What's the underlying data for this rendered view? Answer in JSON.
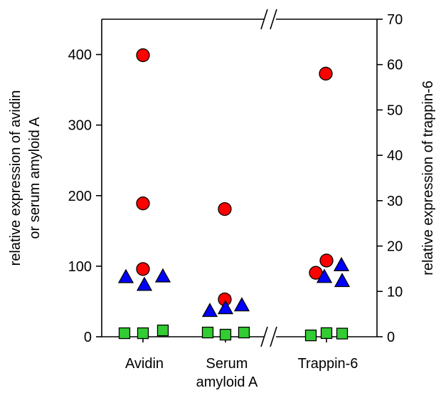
{
  "chart_data": {
    "type": "scatter",
    "categories": [
      [
        "Avidin"
      ],
      [
        "Serum",
        "amyloid A"
      ],
      [
        "Trappin-6"
      ]
    ],
    "left_axis": {
      "label_lines": [
        "relative expression of avidin",
        "or serum amyloid A"
      ],
      "ylim": [
        0,
        450
      ],
      "ticks": [
        0,
        100,
        200,
        300,
        400
      ]
    },
    "right_axis": {
      "label": "relative expression of trappin-6",
      "ylim": [
        0,
        70
      ],
      "ticks": [
        0,
        10,
        20,
        30,
        40,
        50,
        60,
        70
      ]
    },
    "axis_break": "//",
    "series": [
      {
        "marker": "circle",
        "color": "#ff0000",
        "points": [
          {
            "category": 0,
            "axis": "left",
            "y": 399
          },
          {
            "category": 0,
            "axis": "left",
            "y": 189
          },
          {
            "category": 0,
            "axis": "left",
            "y": 96
          },
          {
            "category": 1,
            "axis": "left",
            "y": 181
          },
          {
            "category": 1,
            "axis": "left",
            "y": 53
          },
          {
            "category": 2,
            "axis": "right",
            "y": 58.0
          },
          {
            "category": 2,
            "axis": "right",
            "y": 14.1
          },
          {
            "category": 2,
            "axis": "right",
            "y": 16.8
          }
        ]
      },
      {
        "marker": "triangle",
        "color": "#0000ff",
        "points": [
          {
            "category": 0,
            "axis": "left",
            "y": 84
          },
          {
            "category": 0,
            "axis": "left",
            "y": 73
          },
          {
            "category": 0,
            "axis": "left",
            "y": 85
          },
          {
            "category": 1,
            "axis": "left",
            "y": 36
          },
          {
            "category": 1,
            "axis": "left",
            "y": 40
          },
          {
            "category": 1,
            "axis": "left",
            "y": 44
          },
          {
            "category": 2,
            "axis": "right",
            "y": 13.1
          },
          {
            "category": 2,
            "axis": "right",
            "y": 15.7
          },
          {
            "category": 2,
            "axis": "right",
            "y": 12.2
          }
        ]
      },
      {
        "marker": "square",
        "color": "#33cc33",
        "points": [
          {
            "category": 0,
            "axis": "left",
            "y": 5
          },
          {
            "category": 0,
            "axis": "left",
            "y": 5
          },
          {
            "category": 0,
            "axis": "left",
            "y": 9
          },
          {
            "category": 1,
            "axis": "left",
            "y": 6
          },
          {
            "category": 1,
            "axis": "left",
            "y": 3
          },
          {
            "category": 1,
            "axis": "left",
            "y": 6
          },
          {
            "category": 2,
            "axis": "right",
            "y": 0.3
          },
          {
            "category": 2,
            "axis": "right",
            "y": 0.8
          },
          {
            "category": 2,
            "axis": "right",
            "y": 0.7
          }
        ]
      }
    ],
    "legend": "none",
    "grid": false
  }
}
